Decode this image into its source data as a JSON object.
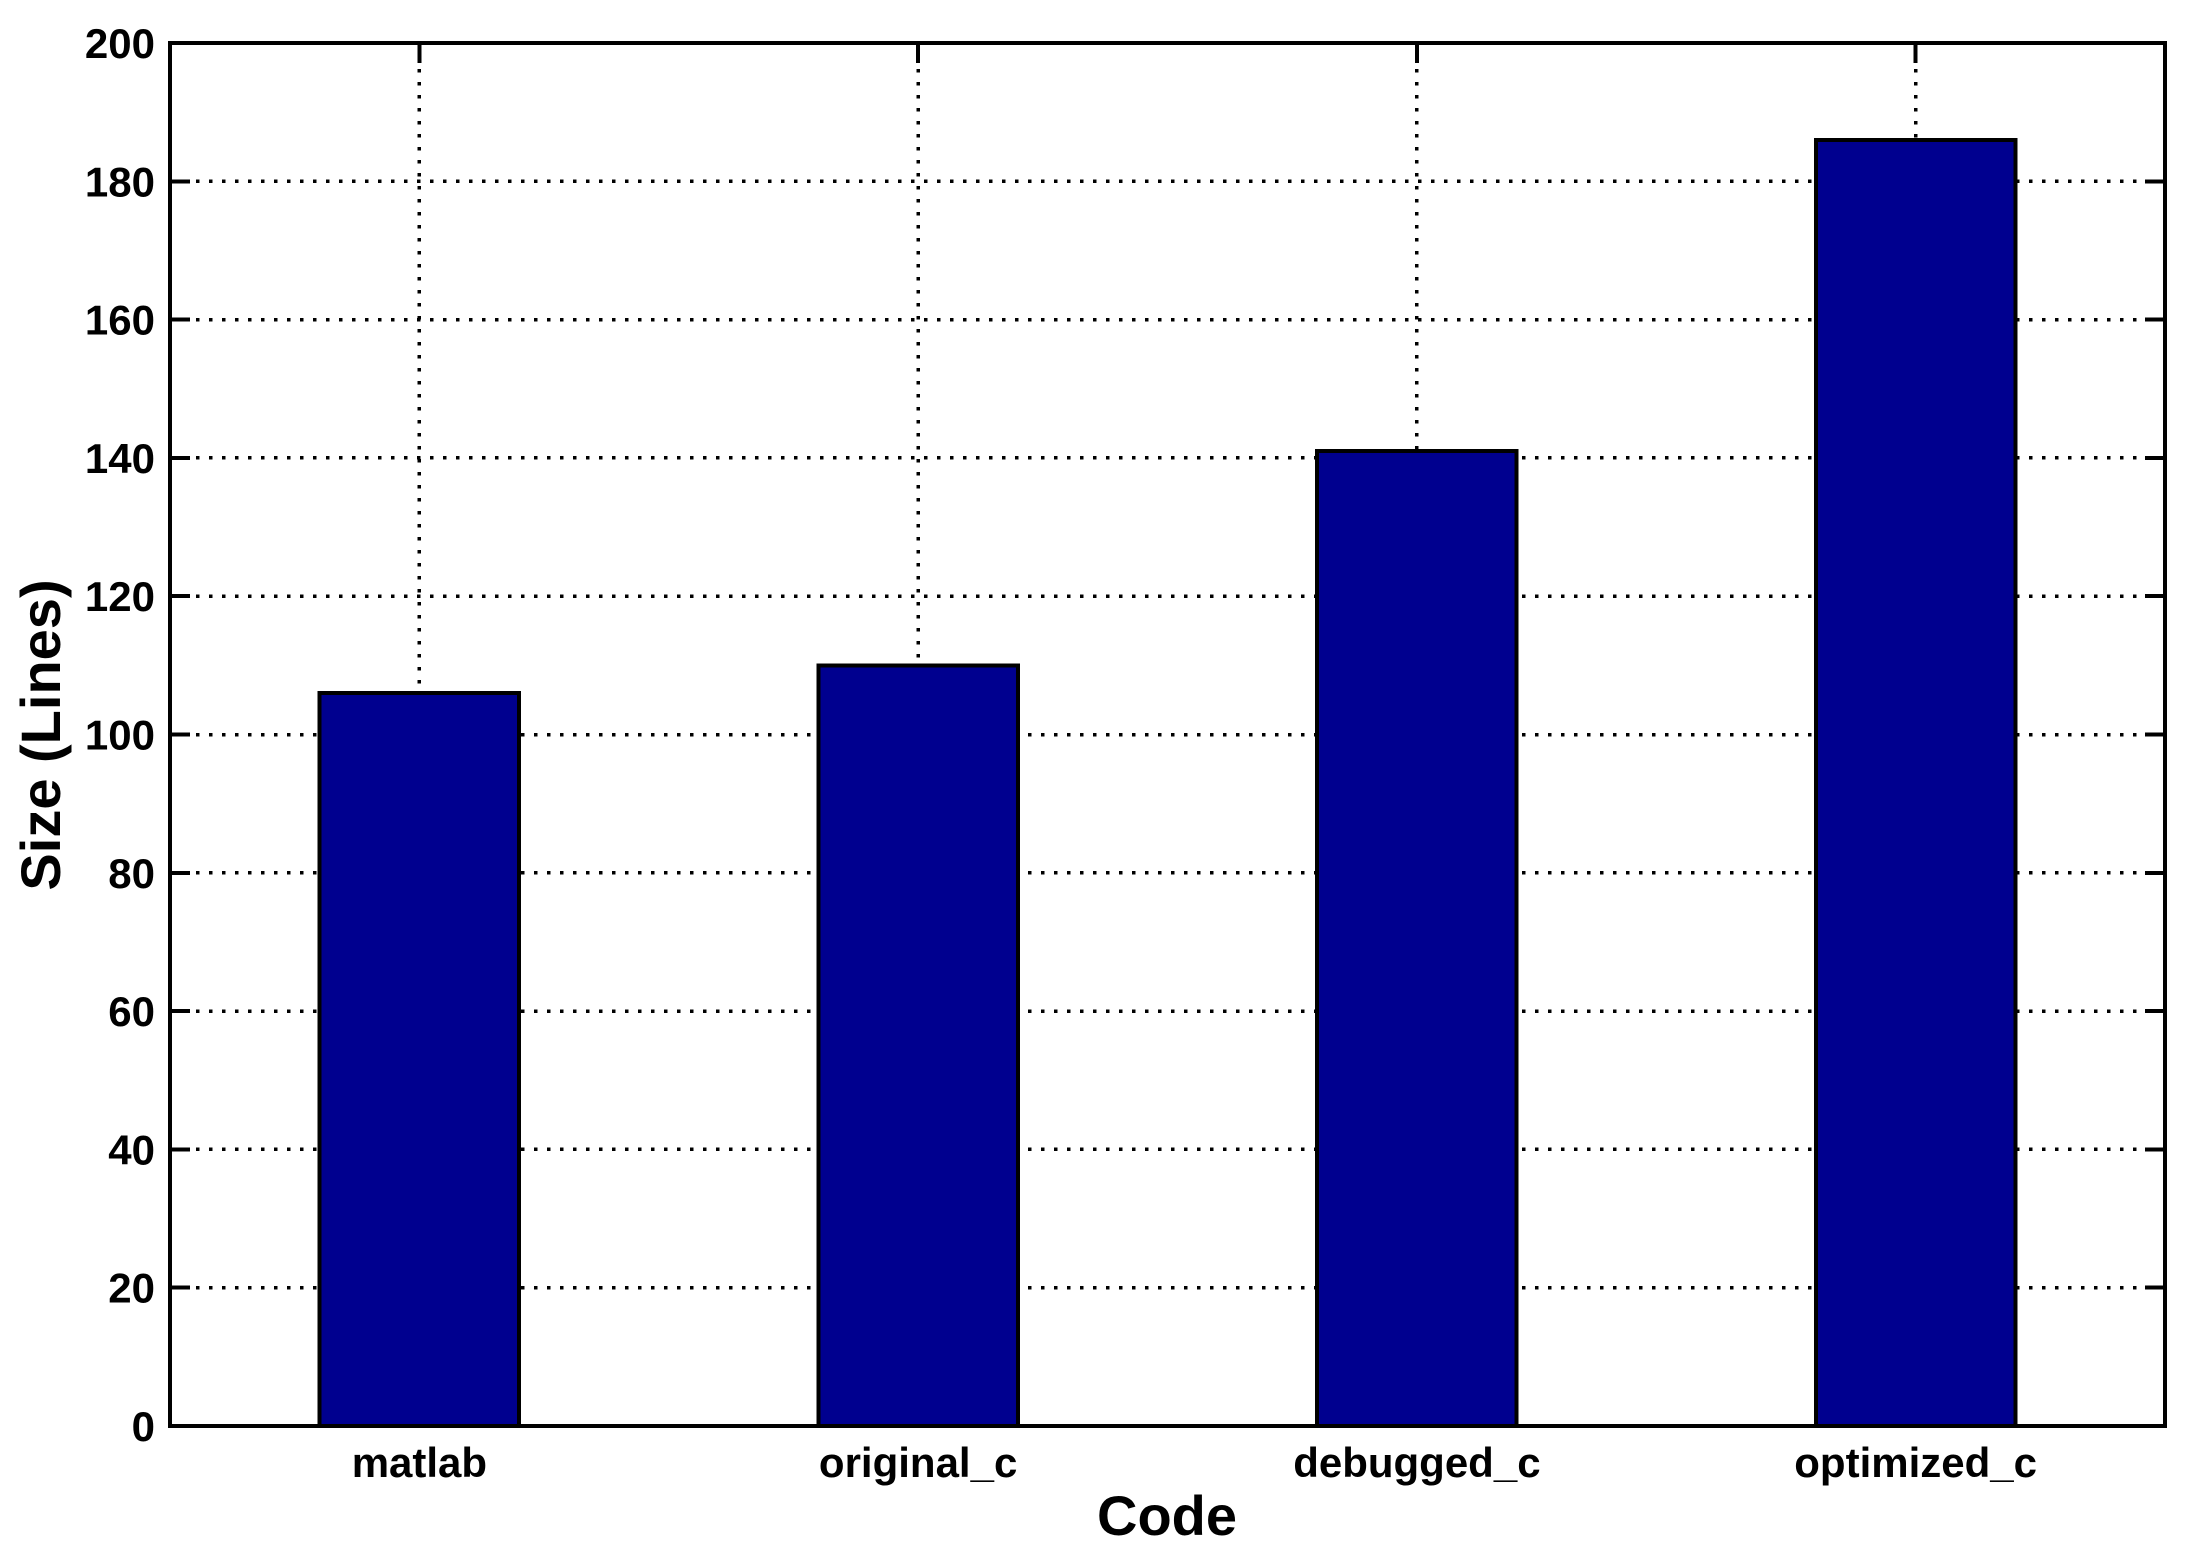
{
  "figure": {
    "background": "#ffffff"
  },
  "chart_data": {
    "type": "bar",
    "title": "",
    "xlabel": "Code",
    "ylabel": "Size (Lines)",
    "categories": [
      "matlab",
      "original_c",
      "debugged_c",
      "optimized_c"
    ],
    "values": [
      106,
      110,
      141,
      186
    ],
    "ylim": [
      0,
      200
    ],
    "yticks": [
      0,
      20,
      40,
      60,
      80,
      100,
      120,
      140,
      160,
      180,
      200
    ],
    "grid": "dotted",
    "grid_color": "#000000",
    "legend": "none",
    "bar_color": "#00008F",
    "bar_edge_color": "#000000",
    "axis_color": "#000000",
    "tick_direction": "in",
    "box": true,
    "bar_width_fraction": 0.4
  }
}
